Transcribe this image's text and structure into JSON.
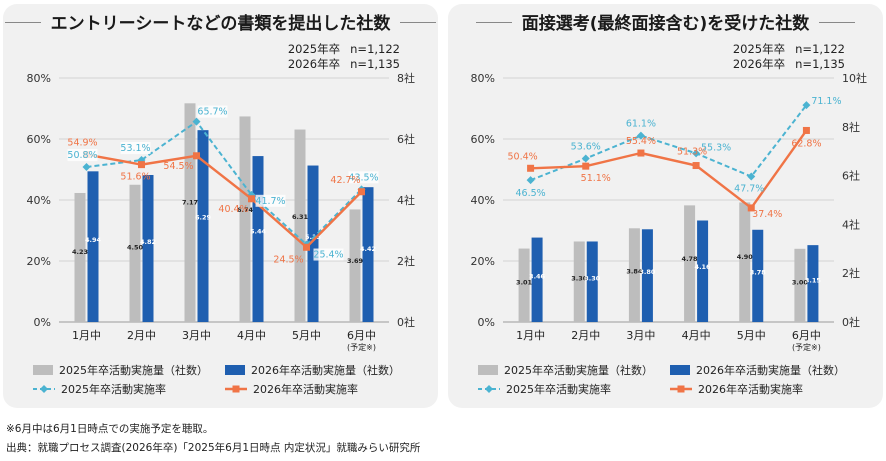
{
  "footnote": "※6月中は6月1日時点での実施予定を聴取。",
  "source": "出典：就職プロセス調査(2026年卒)「2025年6月1日時点 内定状況」就職みらい研究所",
  "colors": {
    "bar2025": "#bdbdbd",
    "bar2026": "#1f5fb0",
    "line2025": "#4bb3d1",
    "line2026": "#f07446",
    "panel_bg": "#f1f1f1"
  },
  "panels": [
    {
      "title": "エントリーシートなどの書類を提出した社数",
      "n_lines": [
        {
          "label": "2025年卒",
          "n": "n=1,122"
        },
        {
          "label": "2026年卒",
          "n": "n=1,135"
        }
      ]
    },
    {
      "title": "面接選考(最終面接含む)を受けた社数",
      "n_lines": [
        {
          "label": "2025年卒",
          "n": "n=1,122"
        },
        {
          "label": "2026年卒",
          "n": "n=1,135"
        }
      ]
    }
  ],
  "chart_data": [
    {
      "type": "bar+line",
      "title": "エントリーシートなどの書類を提出した社数",
      "categories": [
        "1月中",
        "2月中",
        "3月中",
        "4月中",
        "5月中",
        "6月中"
      ],
      "category_note": {
        "index": 5,
        "text": "(予定※)"
      },
      "left_axis": {
        "ylim": [
          0,
          80
        ],
        "ticks": [
          "0%",
          "20%",
          "40%",
          "60%",
          "80%"
        ],
        "values": [
          0,
          20,
          40,
          60,
          80
        ]
      },
      "right_axis": {
        "ylim": [
          0,
          8
        ],
        "ticks": [
          "0社",
          "2社",
          "4社",
          "6社",
          "8社"
        ],
        "values": [
          0,
          2,
          4,
          6,
          8
        ]
      },
      "bars": [
        {
          "name": "2025年卒活動実施量（社数）",
          "values": [
            4.23,
            4.5,
            7.17,
            6.74,
            6.31,
            3.69
          ],
          "labels": [
            "4.23",
            "4.50",
            "7.17",
            "6.74",
            "6.31",
            "3.69"
          ]
        },
        {
          "name": "2026年卒活動実施量（社数）",
          "values": [
            4.94,
            4.82,
            6.29,
            5.44,
            5.13,
            4.42
          ],
          "labels": [
            "4.94",
            "4.82",
            "6.29",
            "5.44",
            "5.13",
            "4.42"
          ]
        }
      ],
      "lines": [
        {
          "name": "2025年卒活動実施率",
          "values": [
            50.8,
            53.1,
            65.7,
            41.7,
            25.4,
            43.5
          ],
          "labels": [
            "50.8%",
            "53.1%",
            "65.7%",
            "41.7%",
            "25.4%",
            "43.5%"
          ]
        },
        {
          "name": "2026年卒活動実施率",
          "values": [
            54.9,
            51.6,
            54.5,
            40.4,
            24.5,
            42.7
          ],
          "labels": [
            "54.9%",
            "51.6%",
            "54.5%",
            "40.4%",
            "24.5%",
            "42.7%"
          ]
        }
      ]
    },
    {
      "type": "bar+line",
      "title": "面接選考(最終面接含む)を受けた社数",
      "categories": [
        "1月中",
        "2月中",
        "3月中",
        "4月中",
        "5月中",
        "6月中"
      ],
      "category_note": {
        "index": 5,
        "text": "(予定※)"
      },
      "left_axis": {
        "ylim": [
          0,
          80
        ],
        "ticks": [
          "0%",
          "20%",
          "40%",
          "60%",
          "80%"
        ],
        "values": [
          0,
          20,
          40,
          60,
          80
        ]
      },
      "right_axis": {
        "ylim": [
          0,
          10
        ],
        "ticks": [
          "0社",
          "2社",
          "4社",
          "6社",
          "8社",
          "10社"
        ],
        "values": [
          0,
          2,
          4,
          6,
          8,
          10
        ]
      },
      "bars": [
        {
          "name": "2025年卒活動実施量（社数）",
          "values": [
            3.01,
            3.3,
            3.84,
            4.78,
            4.9,
            3.0
          ],
          "labels": [
            "3.01",
            "3.30",
            "3.84",
            "4.78",
            "4.90",
            "3.00"
          ]
        },
        {
          "name": "2026年卒活動実施量（社数）",
          "values": [
            3.46,
            3.3,
            3.8,
            4.16,
            3.78,
            3.15
          ],
          "labels": [
            "3.46",
            "3.30",
            "3.80",
            "4.16",
            "3.78",
            "3.15"
          ]
        }
      ],
      "lines": [
        {
          "name": "2025年卒活動実施率",
          "values": [
            46.5,
            53.6,
            61.1,
            55.3,
            47.7,
            71.1
          ],
          "labels": [
            "46.5%",
            "53.6%",
            "61.1%",
            "55.3%",
            "47.7%",
            "71.1%"
          ]
        },
        {
          "name": "2026年卒活動実施率",
          "values": [
            50.4,
            51.1,
            55.4,
            51.3,
            37.4,
            62.8
          ],
          "labels": [
            "50.4%",
            "51.1%",
            "55.4%",
            "51.3%",
            "37.4%",
            "62.8%"
          ]
        }
      ]
    }
  ]
}
